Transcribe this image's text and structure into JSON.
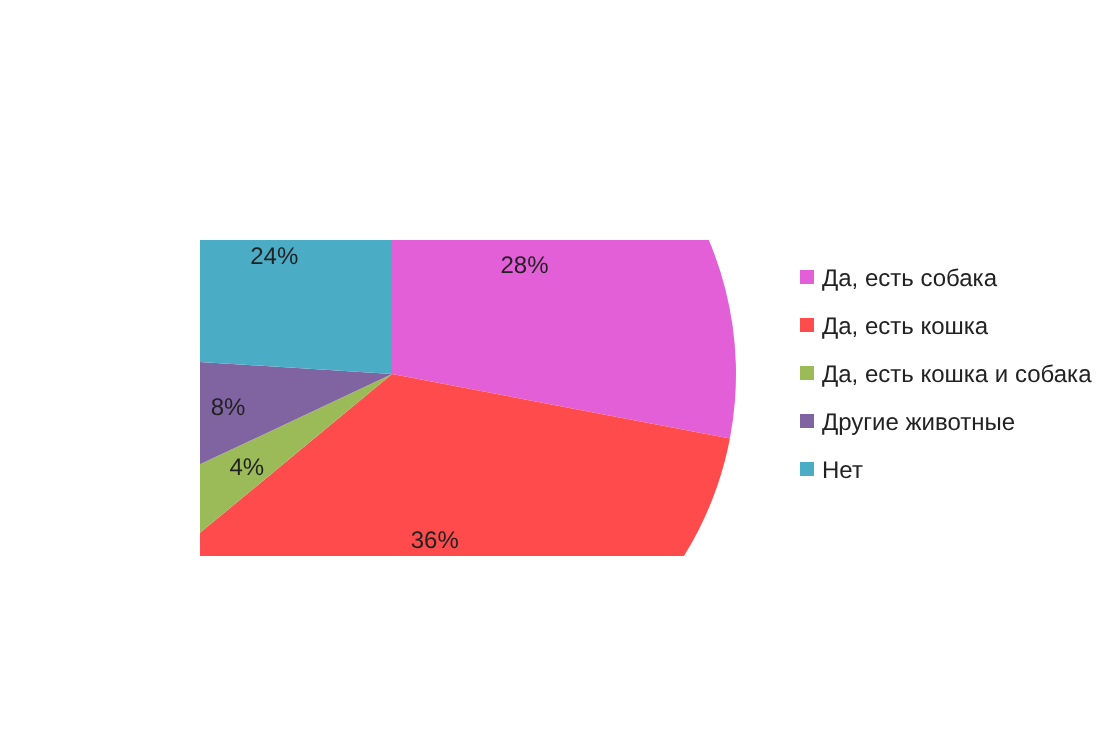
{
  "chart_data": {
    "type": "pie",
    "categories": [
      "Да, есть собака",
      "Да, есть кошка",
      "Да, есть кошка и собака",
      "Другие животные",
      "Нет"
    ],
    "values": [
      28,
      36,
      4,
      8,
      24
    ],
    "colors": [
      "#e35fd8",
      "#ff4b4b",
      "#9bbb59",
      "#8064a2",
      "#4bacc6"
    ],
    "value_labels": [
      "28%",
      "36%",
      "4%",
      "8%",
      "24%"
    ],
    "legend": "right"
  }
}
